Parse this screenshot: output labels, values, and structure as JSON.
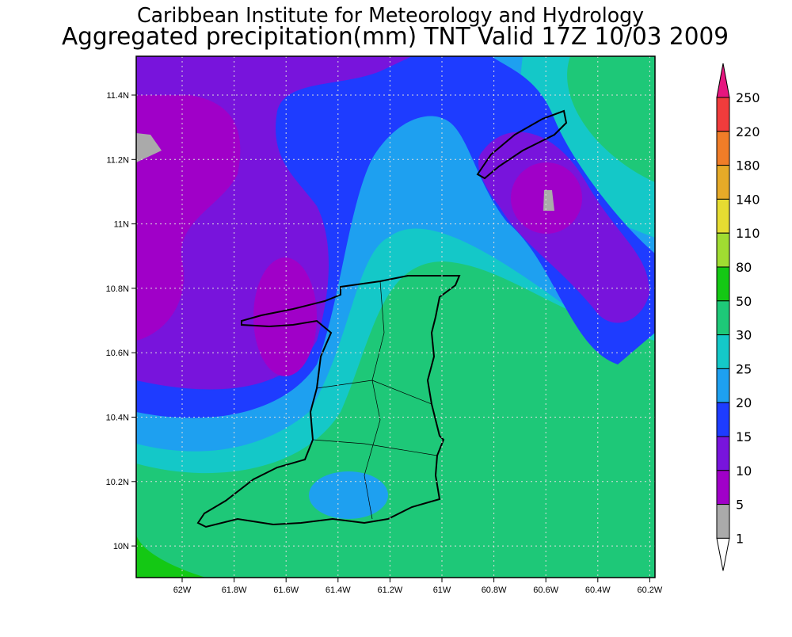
{
  "header": {
    "title": "Caribbean Institute for Meteorology and Hydrology",
    "subtitle": "Aggregated precipitation(mm) TNT Valid 17Z 10/03 2009"
  },
  "map": {
    "lon_ticks": [
      "62W",
      "61.8W",
      "61.6W",
      "61.4W",
      "61.2W",
      "61W",
      "60.8W",
      "60.6W",
      "60.4W",
      "60.2W"
    ],
    "lat_ticks": [
      "11.4N",
      "11.2N",
      "11N",
      "10.8N",
      "10.6N",
      "10.4N",
      "10.2N",
      "10N"
    ]
  },
  "legend": {
    "levels": [
      250,
      220,
      180,
      140,
      110,
      80,
      50,
      30,
      25,
      20,
      15,
      10,
      5,
      1
    ],
    "colors": [
      "#e6167f",
      "#f03c3c",
      "#f07d28",
      "#e6aa28",
      "#e6dc32",
      "#a0dc32",
      "#14c814",
      "#1ec878",
      "#14c8c8",
      "#1ea0f0",
      "#1e3cff",
      "#7814dc",
      "#a000c8",
      "#aaaaaa",
      "#ffffff"
    ]
  }
}
